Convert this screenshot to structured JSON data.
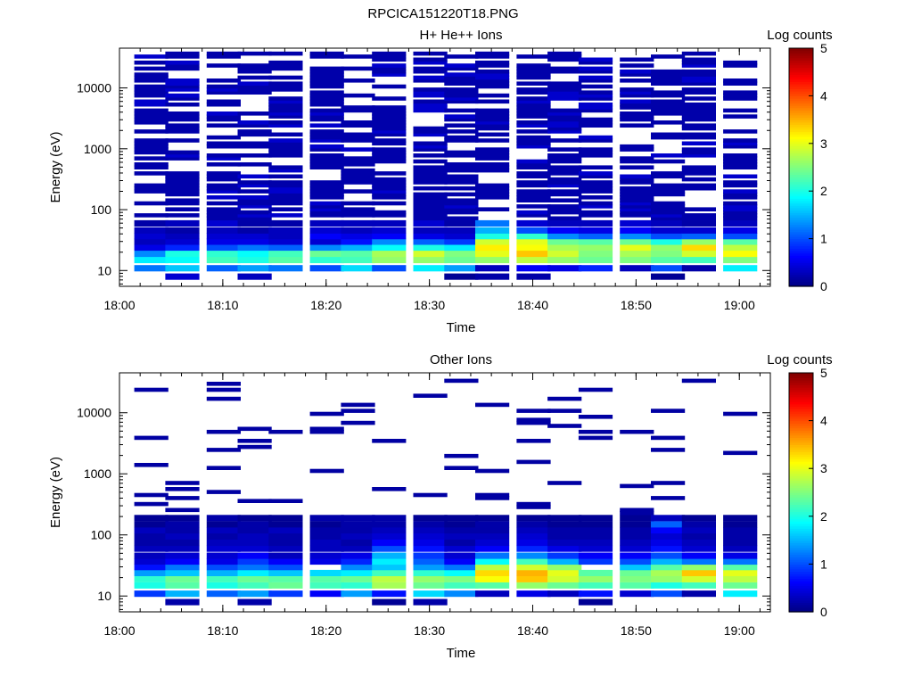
{
  "figure_title": "RPCICA151220T18.PNG",
  "chart_data": [
    {
      "type": "heatmap",
      "title": "H+ He++ Ions",
      "xlabel": "Time",
      "ylabel": "Energy (eV)",
      "x_ticks": [
        "18:00",
        "18:10",
        "18:20",
        "18:30",
        "18:40",
        "18:50",
        "19:00"
      ],
      "x_range_minutes": [
        0,
        63
      ],
      "y_ticks": [
        10,
        100,
        1000,
        10000
      ],
      "y_range": [
        5.5,
        45000
      ],
      "y_scale": "log",
      "colorbar": {
        "label": "Log counts",
        "ticks": [
          0,
          1,
          2,
          3,
          4,
          5
        ],
        "range": [
          0,
          5
        ],
        "colormap": "jet"
      },
      "x": [
        "18:03",
        "18:06",
        "18:10",
        "18:13",
        "18:16",
        "18:20",
        "18:23",
        "18:26",
        "18:30",
        "18:33",
        "18:36",
        "18:40",
        "18:43",
        "18:46",
        "18:50",
        "18:53",
        "18:56",
        "19:00"
      ],
      "energy_bins": [
        8,
        11,
        15,
        19,
        24,
        30,
        37,
        46,
        60
      ],
      "values": [
        [
          null,
          1.2,
          1.8,
          1.3,
          0.5,
          0.3,
          0.4,
          0.3,
          0.2
        ],
        [
          0.4,
          1.6,
          1.9,
          2.0,
          0.8,
          0.4,
          0.3,
          0.2,
          0.3
        ],
        [
          null,
          1.1,
          2.2,
          2.1,
          1.0,
          0.5,
          0.4,
          0.3,
          0.4
        ],
        [
          0.3,
          1.4,
          2.0,
          1.9,
          1.2,
          0.5,
          0.4,
          0.2,
          0.2
        ],
        [
          null,
          1.2,
          2.3,
          2.2,
          1.1,
          0.4,
          0.3,
          0.3,
          0.2
        ],
        [
          null,
          1.0,
          2.1,
          2.4,
          1.3,
          0.4,
          0.6,
          0.4,
          0.3
        ],
        [
          null,
          1.7,
          2.2,
          2.3,
          1.5,
          0.7,
          0.5,
          0.3,
          0.3
        ],
        [
          null,
          1.0,
          2.6,
          2.7,
          1.9,
          1.3,
          0.6,
          0.4,
          0.3
        ],
        [
          null,
          1.8,
          2.6,
          2.9,
          2.0,
          1.1,
          0.5,
          0.3,
          0.4
        ],
        [
          0.1,
          1.4,
          2.4,
          2.5,
          1.8,
          0.9,
          0.4,
          0.3,
          0.2
        ],
        [
          0.2,
          0.3,
          2.6,
          3.0,
          3.2,
          2.9,
          2.0,
          1.5,
          1.2
        ],
        [
          0.2,
          0.6,
          2.8,
          3.4,
          3.1,
          3.0,
          2.1,
          1.0,
          0.4
        ],
        [
          null,
          0.5,
          2.6,
          2.9,
          2.7,
          2.4,
          1.3,
          0.6,
          0.3
        ],
        [
          null,
          0.8,
          2.4,
          2.5,
          2.6,
          2.3,
          1.1,
          0.5,
          0.3
        ],
        [
          null,
          0.3,
          2.5,
          2.7,
          3.0,
          2.4,
          1.3,
          0.6,
          0.4
        ],
        [
          0.1,
          1.0,
          2.3,
          2.5,
          2.6,
          2.0,
          1.0,
          0.4,
          0.3
        ],
        [
          null,
          0.2,
          2.2,
          2.9,
          3.3,
          2.6,
          1.1,
          0.4,
          0.2
        ],
        [
          null,
          1.8,
          2.5,
          3.1,
          2.8,
          2.3,
          1.0,
          0.5,
          0.3
        ]
      ]
    },
    {
      "type": "heatmap",
      "title": "Other Ions",
      "xlabel": "Time",
      "ylabel": "Energy (eV)",
      "x_ticks": [
        "18:00",
        "18:10",
        "18:20",
        "18:30",
        "18:40",
        "18:50",
        "19:00"
      ],
      "x_range_minutes": [
        0,
        63
      ],
      "y_ticks": [
        10,
        100,
        1000,
        10000
      ],
      "y_range": [
        5.5,
        45000
      ],
      "y_scale": "log",
      "colorbar": {
        "label": "Log counts",
        "ticks": [
          0,
          1,
          2,
          3,
          4,
          5
        ],
        "range": [
          0,
          5
        ],
        "colormap": "jet"
      },
      "x": [
        "18:03",
        "18:06",
        "18:10",
        "18:13",
        "18:16",
        "18:20",
        "18:23",
        "18:26",
        "18:30",
        "18:33",
        "18:36",
        "18:40",
        "18:43",
        "18:46",
        "18:50",
        "18:53",
        "18:56",
        "19:00"
      ],
      "energy_bins": [
        8,
        11,
        15,
        19,
        24,
        30,
        37,
        46,
        60,
        75,
        95,
        120,
        150,
        190
      ],
      "values": [
        [
          null,
          0.9,
          2.0,
          2.1,
          1.4,
          0.7,
          0.4,
          0.3,
          0.3,
          0.2,
          0.2,
          0.3,
          0.1,
          0.1
        ],
        [
          0.2,
          1.5,
          2.3,
          2.4,
          1.6,
          1.2,
          0.6,
          0.4,
          0.3,
          0.2,
          0.3,
          0.2,
          0.2,
          0.1
        ],
        [
          null,
          1.1,
          2.0,
          2.2,
          1.5,
          1.0,
          0.5,
          0.4,
          0.4,
          0.3,
          0.2,
          0.3,
          0.1,
          0.2
        ],
        [
          0.2,
          1.4,
          2.2,
          2.4,
          1.8,
          1.2,
          0.9,
          0.6,
          0.4,
          0.3,
          0.3,
          0.2,
          0.2,
          0.1
        ],
        [
          null,
          0.9,
          2.4,
          2.3,
          1.6,
          1.0,
          0.6,
          0.3,
          0.3,
          0.2,
          0.2,
          0.3,
          0.1,
          0.1
        ],
        [
          null,
          0.6,
          2.2,
          2.3,
          1.7,
          null,
          0.5,
          0.4,
          0.3,
          0.3,
          0.2,
          0.2,
          0.1,
          0.2
        ],
        [
          null,
          1.4,
          2.1,
          2.4,
          1.8,
          1.3,
          0.8,
          0.5,
          0.3,
          0.2,
          0.3,
          0.2,
          0.2,
          0.2
        ],
        [
          0.1,
          0.7,
          2.7,
          2.8,
          2.2,
          1.6,
          1.8,
          1.5,
          1.0,
          0.6,
          0.4,
          0.3,
          0.2,
          0.2
        ],
        [
          0.2,
          1.7,
          2.4,
          2.6,
          2.1,
          1.4,
          1.1,
          0.9,
          0.7,
          0.5,
          0.4,
          0.3,
          0.2,
          0.1
        ],
        [
          null,
          1.3,
          2.2,
          2.5,
          1.9,
          1.2,
          0.6,
          0.4,
          0.4,
          0.2,
          0.3,
          0.2,
          0.1,
          0.1
        ],
        [
          null,
          0.3,
          2.3,
          3.1,
          3.3,
          2.8,
          1.9,
          1.2,
          0.6,
          0.4,
          0.3,
          0.2,
          0.2,
          0.1
        ],
        [
          null,
          0.5,
          2.6,
          3.4,
          3.5,
          2.9,
          2.2,
          1.3,
          0.8,
          0.5,
          0.4,
          0.3,
          0.2,
          0.1
        ],
        [
          null,
          0.3,
          2.4,
          2.9,
          3.0,
          2.6,
          1.5,
          0.9,
          0.5,
          0.3,
          0.2,
          0.2,
          0.1,
          0.1
        ],
        [
          0.1,
          0.7,
          2.2,
          2.6,
          2.3,
          null,
          0.9,
          0.6,
          0.4,
          0.3,
          0.2,
          0.2,
          0.1,
          0.1
        ],
        [
          null,
          0.4,
          2.3,
          2.5,
          2.4,
          1.6,
          1.0,
          0.6,
          0.4,
          0.3,
          0.2,
          0.2,
          0.1,
          0.1
        ],
        [
          null,
          1.0,
          2.0,
          2.6,
          2.7,
          2.3,
          1.5,
          1.0,
          0.7,
          0.5,
          0.4,
          0.6,
          1.1,
          0.3
        ],
        [
          null,
          0.2,
          2.2,
          2.9,
          3.4,
          2.6,
          1.2,
          0.6,
          0.4,
          0.3,
          0.2,
          0.3,
          0.2,
          0.1
        ],
        [
          null,
          1.8,
          2.4,
          2.8,
          3.0,
          2.3,
          1.2,
          0.5,
          0.3,
          0.2,
          0.2,
          0.2,
          0.1,
          0.1
        ]
      ],
      "sparse_high_energy_counts": "isolated single-count (dark blue) bins between ~200 eV and ~35000 eV"
    }
  ]
}
